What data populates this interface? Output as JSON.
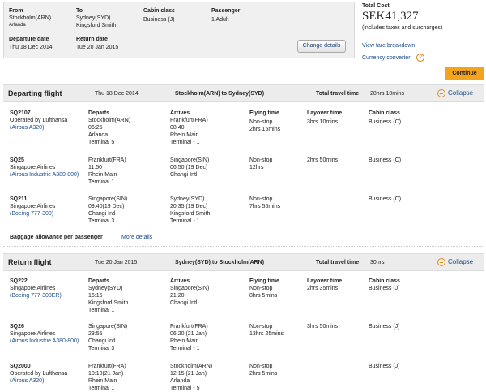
{
  "summary": {
    "from_label": "From",
    "from_value": "Stockholm(ARN)",
    "from_airport": "Arlanda",
    "to_label": "To",
    "to_value": "Sydney(SYD)",
    "to_airport": "Kingsford Smith",
    "cabin_label": "Cabin class",
    "cabin_value": "Business (J)",
    "passenger_label": "Passenger",
    "passenger_value": "1 Adult",
    "departure_label": "Departure date",
    "departure_value": "Thu 18 Dec 2014",
    "return_label": "Return date",
    "return_value": "Tue 20 Jan 2015",
    "change_button": "Change details"
  },
  "total": {
    "label": "Total Cost",
    "amount": "SEK41,327",
    "note": "(includes taxes and surcharges)",
    "fare_link": "View fare breakdown",
    "converter_link": "Currency converter",
    "help": "?"
  },
  "continue_button": "Continue",
  "columns": {
    "departs": "Departs",
    "arrives": "Arrives",
    "flying": "Flying time",
    "layover": "Layover time",
    "cabin": "Cabin class"
  },
  "departing": {
    "title": "Departing flight",
    "date": "Thu 18 Dec 2014",
    "route": "Stockholm(ARN) to Sydney(SYD)",
    "travel_label": "Total travel time",
    "travel_value": "28hrs 10mins",
    "collapse": "Collapse",
    "flights": [
      {
        "code": "SQ2107",
        "op1": "Operated by Lufthansa",
        "op2": "(Airbus A320)",
        "dep_city": "Stockholm(ARN)",
        "dep_time": "06:25",
        "dep_airport": "Arlanda",
        "dep_terminal": "Terminal 5",
        "arr_city": "Frankfurt(FRA)",
        "arr_time": "08:40",
        "arr_airport": "Rhein Main",
        "arr_terminal": "Terminal - 1",
        "stops": "Non-stop",
        "flying": "2hrs 15mins",
        "layover": "3hrs 10mins",
        "cabin": "Business (C)"
      },
      {
        "code": "SQ25",
        "op1": "Singapore Airlines",
        "op2": "(Airbus Industrie A380-800)",
        "dep_city": "Frankfurt(FRA)",
        "dep_time": "11:50",
        "dep_airport": "Rhein Main",
        "dep_terminal": "Terminal 1",
        "arr_city": "Singapore(SIN)",
        "arr_time": "06:50 (19 Dec)",
        "arr_airport": "Changi Intl",
        "arr_terminal": "",
        "stops": "Non-stop",
        "flying": "12hrs",
        "layover": "2hrs 50mins",
        "cabin": "Business (C)"
      },
      {
        "code": "SQ211",
        "op1": "Singapore Airlines",
        "op2": "(Boeing 777-300)",
        "dep_city": "Singapore(SIN)",
        "dep_time": "09:40(19 Dec)",
        "dep_airport": "Changi Intl",
        "dep_terminal": "Terminal 3",
        "arr_city": "Sydney(SYD)",
        "arr_time": "20:35 (19 Dec)",
        "arr_airport": "Kingsford Smith",
        "arr_terminal": "Terminal - 1",
        "stops": "Non-stop",
        "flying": "7hrs 55mins",
        "layover": "",
        "cabin": "Business (C)"
      }
    ],
    "baggage_label": "Baggage allowance per passenger",
    "baggage_link": "More details"
  },
  "return": {
    "title": "Return flight",
    "date": "Tue 20 Jan 2015",
    "route": "Sydney(SYD) to Stockholm(ARN)",
    "travel_label": "Total travel time",
    "travel_value": "30hrs",
    "collapse": "Collapse",
    "flights": [
      {
        "code": "SQ222",
        "op1": "Singapore Airlines",
        "op2": "(Boeing 777-300ER)",
        "dep_city": "Sydney(SYD)",
        "dep_time": "16:15",
        "dep_airport": "Kingsford Smith",
        "dep_terminal": "Terminal 1",
        "arr_city": "Singapore(SIN)",
        "arr_time": "21:20",
        "arr_airport": "Changi Intl",
        "arr_terminal": "",
        "stops": "Non-stop",
        "flying": "8hrs 5mins",
        "layover": "2hrs 35mins",
        "cabin": "Business (J)"
      },
      {
        "code": "SQ26",
        "op1": "Singapore Airlines",
        "op2": "(Airbus Industrie A380-800)",
        "dep_city": "Singapore(SIN)",
        "dep_time": "23:55",
        "dep_airport": "Changi Intl",
        "dep_terminal": "Terminal 3",
        "arr_city": "Frankfurt(FRA)",
        "arr_time": "06:20 (21 Jan)",
        "arr_airport": "Rhein Main",
        "arr_terminal": "Terminal - 1",
        "stops": "Non-stop",
        "flying": "13hrs 25mins",
        "layover": "3hrs 50mins",
        "cabin": "Business (J)"
      },
      {
        "code": "SQ2000",
        "op1": "Operated by Lufthansa",
        "op2": "(Airbus A320)",
        "dep_city": "Frankfurt(FRA)",
        "dep_time": "10:10(21 Jan)",
        "dep_airport": "Rhein Main",
        "dep_terminal": "Terminal 1",
        "arr_city": "Stockholm(ARN)",
        "arr_time": "12:15 (21 Jan)",
        "arr_airport": "Arlanda",
        "arr_terminal": "Terminal - 5",
        "stops": "Non-stop",
        "flying": "2hrs 5mins",
        "layover": "",
        "cabin": "Business (J)"
      }
    ]
  }
}
